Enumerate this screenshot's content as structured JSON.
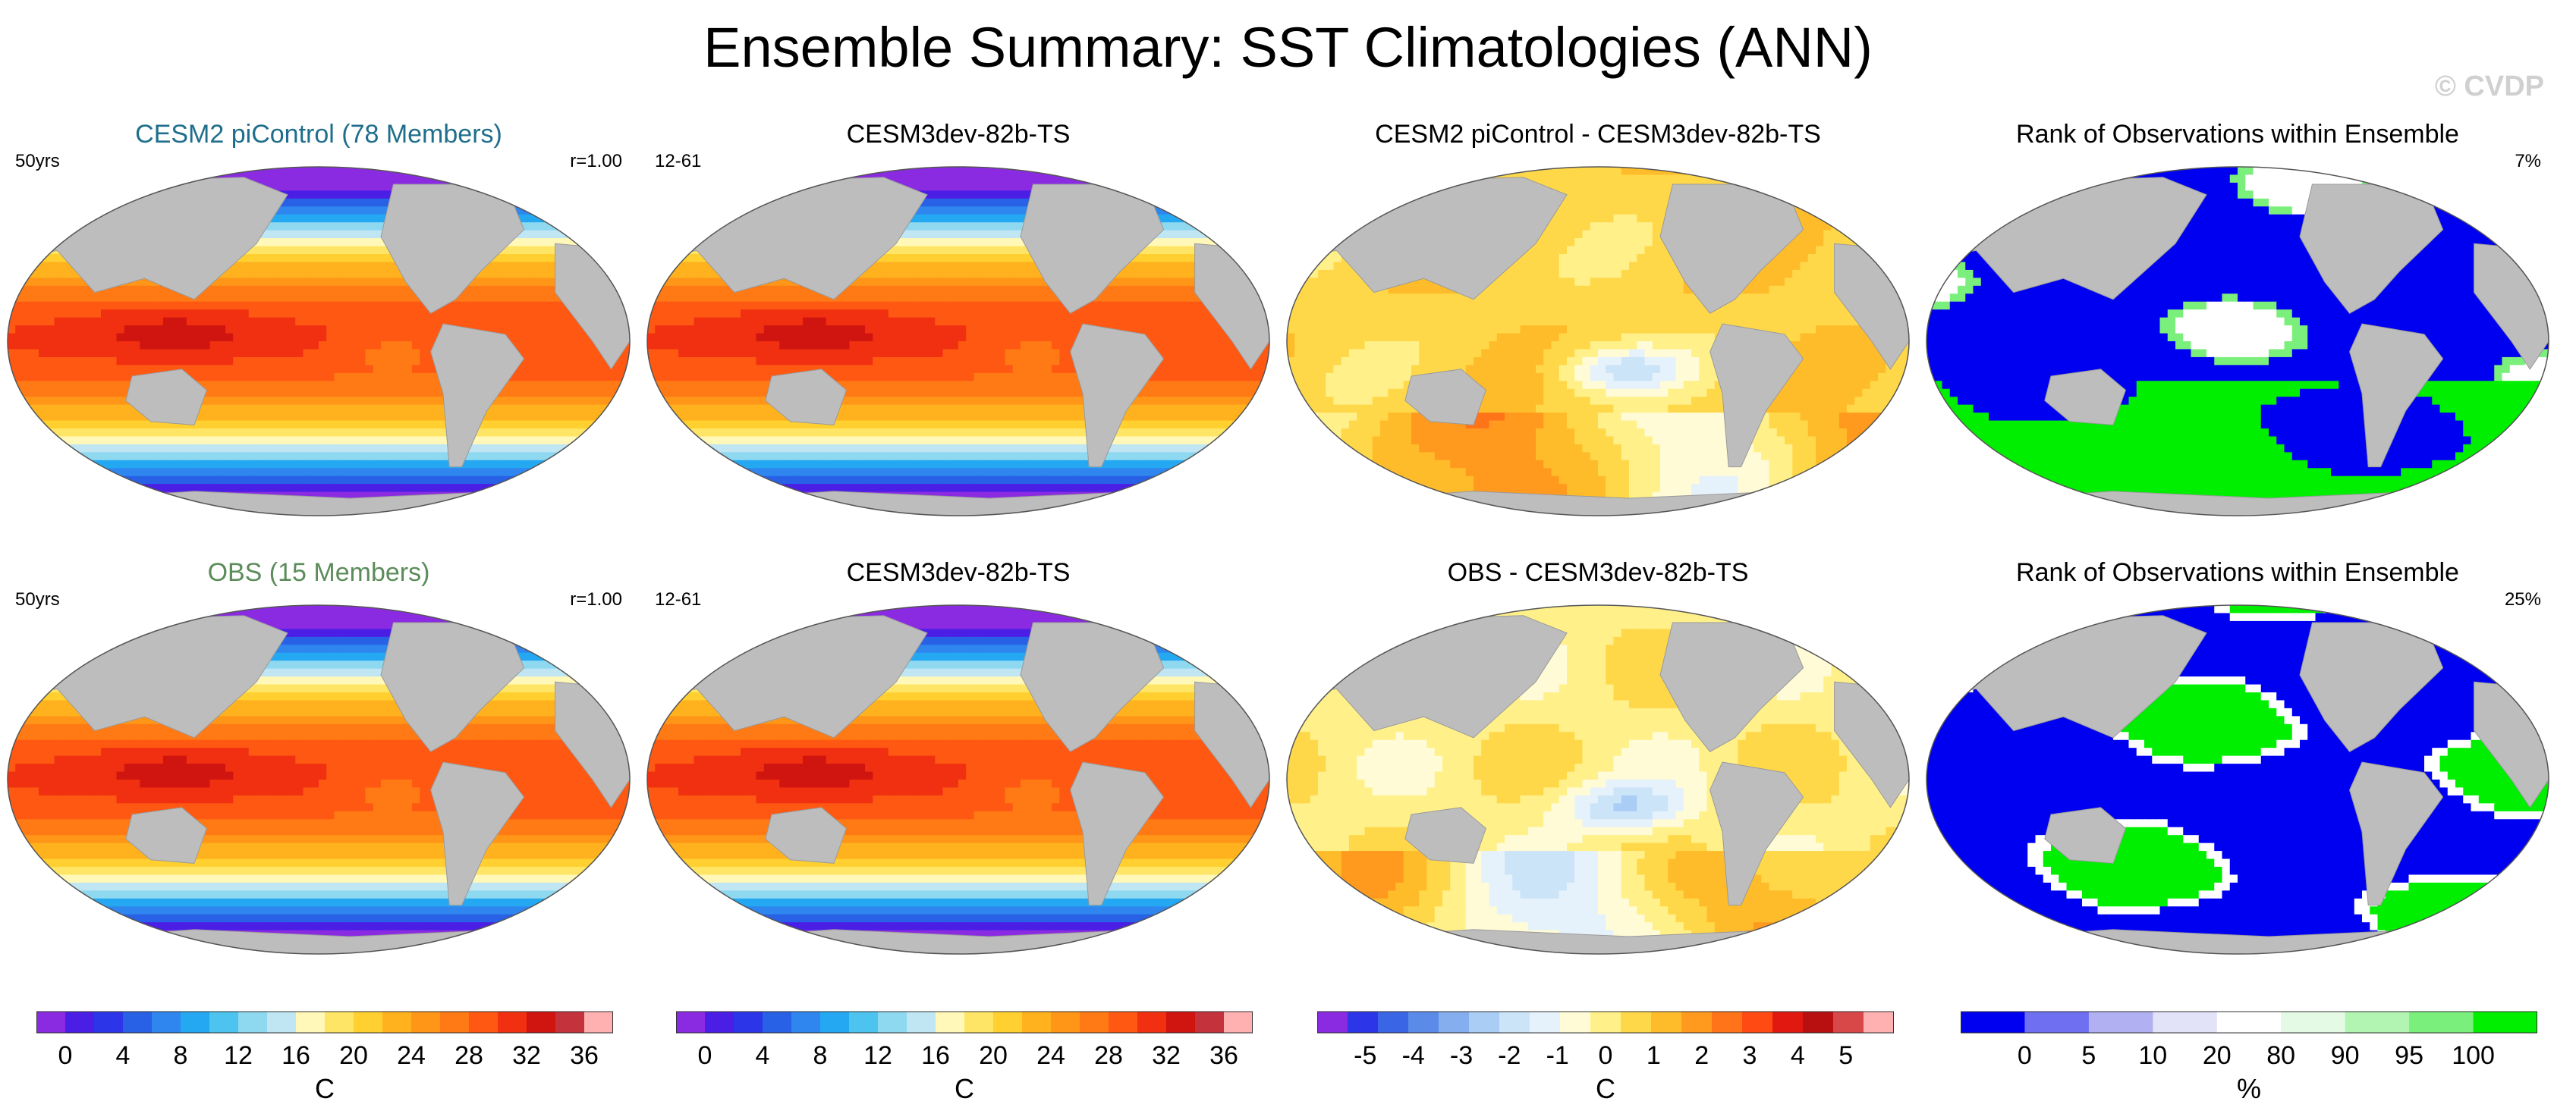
{
  "title": "Ensemble Summary: SST Climatologies (ANN)",
  "watermark": "© CVDP",
  "colors": {
    "land": "#bdbdbd",
    "title_model": "#1f6e8c",
    "title_obs": "#5b8c5a",
    "sst_palette": [
      "#8a2be2",
      "#4b1ee6",
      "#2d35e8",
      "#2860e6",
      "#2e86ee",
      "#25a8f2",
      "#4dc4f0",
      "#8ed8f0",
      "#bfe6f2",
      "#fff8b8",
      "#ffe566",
      "#ffd030",
      "#ffb21e",
      "#ff9618",
      "#ff7a14",
      "#ff5812",
      "#f03010",
      "#d01410",
      "#c4323c",
      "#ffb0b0"
    ],
    "diff_palette": [
      "#8a2be2",
      "#2d35e8",
      "#3a66e6",
      "#5b8be8",
      "#84aeee",
      "#a9cdf4",
      "#cce4f8",
      "#e6f2fb",
      "#fffbd6",
      "#fff08a",
      "#ffd84a",
      "#ffbc2a",
      "#ff9a1e",
      "#ff7418",
      "#ff4a14",
      "#e01810",
      "#b81010",
      "#d84848",
      "#ffb0b0"
    ],
    "rank_palette": [
      "#0000f0",
      "#6f6ff2",
      "#b0b0f2",
      "#e2e2f8",
      "#ffffff",
      "#e4fae4",
      "#b2f5b2",
      "#7bef7b",
      "#00ee00"
    ]
  },
  "panels": [
    {
      "id": "cesm2-picontrol",
      "title": "CESM2 piControl (78 Members)",
      "left": "50yrs",
      "right": "r=1.00",
      "kind": "sst",
      "title_style": "model"
    },
    {
      "id": "cesm3dev-top",
      "title": "CESM3dev-82b-TS",
      "left": "12-61",
      "right": "",
      "kind": "sst",
      "title_style": "plain"
    },
    {
      "id": "diff-top",
      "title": "CESM2 piControl - CESM3dev-82b-TS",
      "left": "",
      "right": "",
      "kind": "diff1",
      "title_style": "plain"
    },
    {
      "id": "rank-top",
      "title": "Rank of Observations within Ensemble",
      "left": "",
      "right": "7%",
      "kind": "rank1",
      "title_style": "plain"
    },
    {
      "id": "obs",
      "title": "OBS (15 Members)",
      "left": "50yrs",
      "right": "r=1.00",
      "kind": "sst",
      "title_style": "obs"
    },
    {
      "id": "cesm3dev-bottom",
      "title": "CESM3dev-82b-TS",
      "left": "12-61",
      "right": "",
      "kind": "sst",
      "title_style": "plain"
    },
    {
      "id": "diff-bottom",
      "title": "OBS - CESM3dev-82b-TS",
      "left": "",
      "right": "",
      "kind": "diff2",
      "title_style": "plain"
    },
    {
      "id": "rank-bottom",
      "title": "Rank of Observations within Ensemble",
      "left": "",
      "right": "25%",
      "kind": "rank2",
      "title_style": "plain"
    }
  ],
  "colorbars": [
    {
      "id": "sst-1",
      "palette": "sst_palette",
      "ticks": [
        "0",
        "4",
        "8",
        "12",
        "16",
        "20",
        "24",
        "28",
        "32",
        "36"
      ],
      "unit": "C"
    },
    {
      "id": "sst-2",
      "palette": "sst_palette",
      "ticks": [
        "0",
        "4",
        "8",
        "12",
        "16",
        "20",
        "24",
        "28",
        "32",
        "36"
      ],
      "unit": "C"
    },
    {
      "id": "diff",
      "palette": "diff_palette",
      "ticks": [
        "-5",
        "-4",
        "-3",
        "-2",
        "-1",
        "0",
        "1",
        "2",
        "3",
        "4",
        "5"
      ],
      "unit": "C"
    },
    {
      "id": "rank",
      "palette": "rank_palette",
      "ticks": [
        "0",
        "5",
        "10",
        "20",
        "80",
        "90",
        "95",
        "100"
      ],
      "unit": "%"
    }
  ],
  "chart_data": {
    "type": "heatmap",
    "title": "Ensemble Summary: SST Climatologies (ANN)",
    "sst_colorbar": {
      "unit": "C",
      "range": [
        -2,
        38
      ],
      "interval": 2,
      "tick_labels": [
        0,
        4,
        8,
        12,
        16,
        20,
        24,
        28,
        32,
        36
      ]
    },
    "difference_colorbar": {
      "unit": "C",
      "range": [
        -5.5,
        5.5
      ],
      "tick_labels": [
        -5,
        -4,
        -3,
        -2,
        -1,
        0,
        1,
        2,
        3,
        4,
        5
      ]
    },
    "rank_colorbar": {
      "unit": "%",
      "boundaries": [
        0,
        5,
        10,
        20,
        80,
        90,
        95,
        100
      ]
    },
    "panels": [
      {
        "name": "CESM2 piControl (78 Members)",
        "field": "SST annual climatology",
        "years": "50yrs",
        "pattern_corr": "r=1.00"
      },
      {
        "name": "CESM3dev-82b-TS",
        "field": "SST annual climatology",
        "years": "12-61"
      },
      {
        "name": "CESM2 piControl - CESM3dev-82b-TS",
        "field": "SST difference"
      },
      {
        "name": "Rank of Observations within Ensemble",
        "field": "rank",
        "area_outside_10_90": "7%"
      },
      {
        "name": "OBS (15 Members)",
        "field": "SST annual climatology",
        "years": "50yrs",
        "pattern_corr": "r=1.00"
      },
      {
        "name": "CESM3dev-82b-TS",
        "field": "SST annual climatology",
        "years": "12-61"
      },
      {
        "name": "OBS - CESM3dev-82b-TS",
        "field": "SST difference"
      },
      {
        "name": "Rank of Observations within Ensemble",
        "field": "rank",
        "area_outside_10_90": "25%"
      }
    ]
  }
}
